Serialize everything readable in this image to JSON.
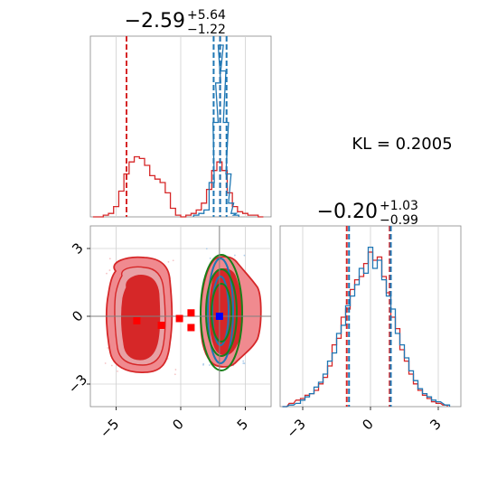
{
  "chart_data": [
    {
      "type": "histogram",
      "panel": "marginal-x",
      "title_main": "−2.59",
      "title_sup": "+5.64",
      "title_sub": "−1.22",
      "xlim": [
        -7,
        7
      ],
      "series": [
        {
          "color": "#d62728",
          "bins": [
            [
              -6.6,
              0.0
            ],
            [
              -6.2,
              0.0
            ],
            [
              -5.8,
              0.01
            ],
            [
              -5.4,
              0.02
            ],
            [
              -5.0,
              0.06
            ],
            [
              -4.6,
              0.15
            ],
            [
              -4.2,
              0.25
            ],
            [
              -3.8,
              0.32
            ],
            [
              -3.4,
              0.35
            ],
            [
              -3.0,
              0.34
            ],
            [
              -2.6,
              0.3
            ],
            [
              -2.2,
              0.24
            ],
            [
              -1.8,
              0.22
            ],
            [
              -1.4,
              0.2
            ],
            [
              -1.0,
              0.14
            ],
            [
              -0.6,
              0.05
            ],
            [
              -0.2,
              0.01
            ],
            [
              0.2,
              0.0
            ],
            [
              0.6,
              0.01
            ],
            [
              1.0,
              0.02
            ],
            [
              1.4,
              0.04
            ],
            [
              1.8,
              0.08
            ],
            [
              2.2,
              0.16
            ],
            [
              2.6,
              0.27
            ],
            [
              3.0,
              0.32
            ],
            [
              3.4,
              0.27
            ],
            [
              3.8,
              0.14
            ],
            [
              4.2,
              0.06
            ],
            [
              4.6,
              0.03
            ],
            [
              5.0,
              0.02
            ],
            [
              5.4,
              0.01
            ],
            [
              5.8,
              0.01
            ],
            [
              6.2,
              0.0
            ]
          ],
          "quantile_lines": [
            -4.2,
            3.05
          ]
        },
        {
          "color": "#1f77b4",
          "bins": [
            [
              1.2,
              0.01
            ],
            [
              1.6,
              0.02
            ],
            [
              2.0,
              0.04
            ],
            [
              2.4,
              0.2
            ],
            [
              2.7,
              0.55
            ],
            [
              2.9,
              0.78
            ],
            [
              3.1,
              1.0
            ],
            [
              3.3,
              0.85
            ],
            [
              3.5,
              0.55
            ],
            [
              3.7,
              0.25
            ],
            [
              3.9,
              0.08
            ],
            [
              4.1,
              0.02
            ],
            [
              4.3,
              0.01
            ]
          ],
          "quantile_lines": [
            2.55,
            3.05,
            3.55
          ]
        }
      ]
    },
    {
      "type": "contour",
      "panel": "joint",
      "xlim": [
        -7,
        7
      ],
      "ylim": [
        -4,
        4
      ],
      "x_ticks": [
        "−5",
        "0",
        "5"
      ],
      "y_ticks": [
        "−3",
        "0",
        "3"
      ],
      "red_markers": [
        [
          -3.4,
          -0.2
        ],
        [
          -1.5,
          -0.4
        ],
        [
          -0.1,
          -0.1
        ],
        [
          0.8,
          0.15
        ],
        [
          0.8,
          -0.5
        ]
      ],
      "blue_marker": [
        3.0,
        0.0
      ],
      "crosshair": [
        3.0,
        0.0
      ]
    },
    {
      "type": "histogram",
      "panel": "marginal-y",
      "title_main": "−0.20",
      "title_sup": "+1.03",
      "title_sub": "−0.99",
      "xlim": [
        -4,
        4
      ],
      "x_ticks": [
        "−3",
        "0",
        "3"
      ],
      "series": [
        {
          "color": "#d62728",
          "bins": [
            [
              -3.8,
              0.0
            ],
            [
              -3.5,
              0.02
            ],
            [
              -3.2,
              0.04
            ],
            [
              -3.0,
              0.05
            ],
            [
              -2.8,
              0.07
            ],
            [
              -2.6,
              0.08
            ],
            [
              -2.4,
              0.1
            ],
            [
              -2.2,
              0.14
            ],
            [
              -2.0,
              0.18
            ],
            [
              -1.8,
              0.25
            ],
            [
              -1.6,
              0.38
            ],
            [
              -1.4,
              0.42
            ],
            [
              -1.2,
              0.55
            ],
            [
              -1.0,
              0.6
            ],
            [
              -0.8,
              0.72
            ],
            [
              -0.6,
              0.78
            ],
            [
              -0.4,
              0.8
            ],
            [
              -0.2,
              0.88
            ],
            [
              0.0,
              0.95
            ],
            [
              0.2,
              0.9
            ],
            [
              0.4,
              0.92
            ],
            [
              0.6,
              0.8
            ],
            [
              0.8,
              0.7
            ],
            [
              1.0,
              0.55
            ],
            [
              1.2,
              0.48
            ],
            [
              1.4,
              0.35
            ],
            [
              1.6,
              0.28
            ],
            [
              1.8,
              0.2
            ],
            [
              2.0,
              0.14
            ],
            [
              2.2,
              0.1
            ],
            [
              2.4,
              0.07
            ],
            [
              2.6,
              0.05
            ],
            [
              2.8,
              0.03
            ],
            [
              3.0,
              0.02
            ],
            [
              3.3,
              0.01
            ]
          ],
          "quantile_lines": [
            -1.05,
            0.85
          ]
        },
        {
          "color": "#1f77b4",
          "bins": [
            [
              -3.8,
              0.0
            ],
            [
              -3.5,
              0.01
            ],
            [
              -3.2,
              0.02
            ],
            [
              -3.0,
              0.04
            ],
            [
              -2.8,
              0.06
            ],
            [
              -2.6,
              0.08
            ],
            [
              -2.4,
              0.12
            ],
            [
              -2.2,
              0.15
            ],
            [
              -2.0,
              0.2
            ],
            [
              -1.8,
              0.28
            ],
            [
              -1.6,
              0.33
            ],
            [
              -1.4,
              0.45
            ],
            [
              -1.2,
              0.5
            ],
            [
              -1.0,
              0.62
            ],
            [
              -0.8,
              0.68
            ],
            [
              -0.6,
              0.75
            ],
            [
              -0.4,
              0.85
            ],
            [
              -0.2,
              0.82
            ],
            [
              0.0,
              0.98
            ],
            [
              0.2,
              0.85
            ],
            [
              0.4,
              0.9
            ],
            [
              0.6,
              0.78
            ],
            [
              0.8,
              0.68
            ],
            [
              1.0,
              0.6
            ],
            [
              1.2,
              0.45
            ],
            [
              1.4,
              0.38
            ],
            [
              1.6,
              0.3
            ],
            [
              1.8,
              0.22
            ],
            [
              2.0,
              0.16
            ],
            [
              2.2,
              0.11
            ],
            [
              2.4,
              0.08
            ],
            [
              2.6,
              0.06
            ],
            [
              2.8,
              0.04
            ],
            [
              3.0,
              0.03
            ],
            [
              3.4,
              0.01
            ]
          ],
          "quantile_lines": [
            -0.95,
            0.9
          ]
        }
      ]
    },
    {
      "type": "annotation",
      "text": "KL = 0.2005"
    }
  ]
}
